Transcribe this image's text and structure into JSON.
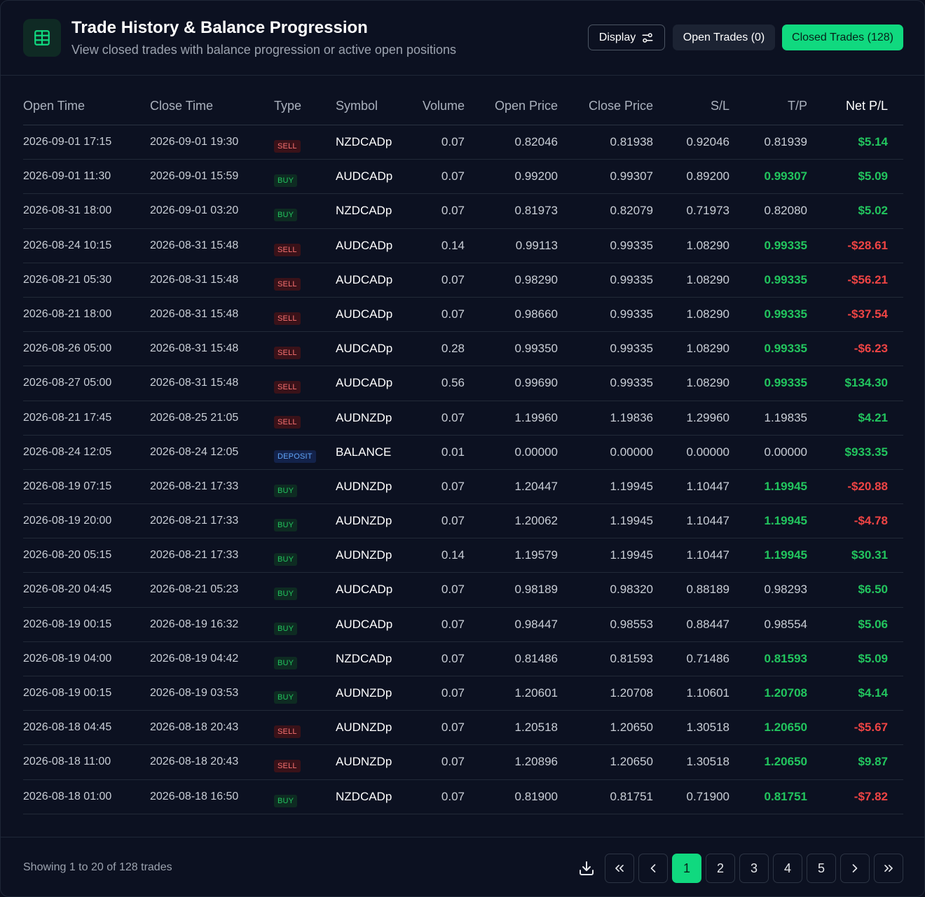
{
  "header": {
    "title": "Trade History & Balance Progression",
    "subtitle": "View closed trades with balance progression or active open positions",
    "display_label": "Display",
    "open_trades_label": "Open Trades (0)",
    "closed_trades_label": "Closed Trades (128)"
  },
  "columns": {
    "open_time": "Open Time",
    "close_time": "Close Time",
    "type": "Type",
    "symbol": "Symbol",
    "volume": "Volume",
    "open_price": "Open Price",
    "close_price": "Close Price",
    "sl": "S/L",
    "tp": "T/P",
    "net_pl": "Net P/L"
  },
  "rows": [
    {
      "open": "2026-09-01 17:15",
      "close": "2026-09-01 19:30",
      "type": "SELL",
      "symbol": "NZDCADp",
      "volume": "0.07",
      "open_price": "0.82046",
      "close_price": "0.81938",
      "sl": "0.92046",
      "tp": "0.81939",
      "tp_hit": false,
      "pl": "$5.14",
      "pl_sign": "pos"
    },
    {
      "open": "2026-09-01 11:30",
      "close": "2026-09-01 15:59",
      "type": "BUY",
      "symbol": "AUDCADp",
      "volume": "0.07",
      "open_price": "0.99200",
      "close_price": "0.99307",
      "sl": "0.89200",
      "tp": "0.99307",
      "tp_hit": true,
      "pl": "$5.09",
      "pl_sign": "pos"
    },
    {
      "open": "2026-08-31 18:00",
      "close": "2026-09-01 03:20",
      "type": "BUY",
      "symbol": "NZDCADp",
      "volume": "0.07",
      "open_price": "0.81973",
      "close_price": "0.82079",
      "sl": "0.71973",
      "tp": "0.82080",
      "tp_hit": false,
      "pl": "$5.02",
      "pl_sign": "pos"
    },
    {
      "open": "2026-08-24 10:15",
      "close": "2026-08-31 15:48",
      "type": "SELL",
      "symbol": "AUDCADp",
      "volume": "0.14",
      "open_price": "0.99113",
      "close_price": "0.99335",
      "sl": "1.08290",
      "tp": "0.99335",
      "tp_hit": true,
      "pl": "-$28.61",
      "pl_sign": "neg"
    },
    {
      "open": "2026-08-21 05:30",
      "close": "2026-08-31 15:48",
      "type": "SELL",
      "symbol": "AUDCADp",
      "volume": "0.07",
      "open_price": "0.98290",
      "close_price": "0.99335",
      "sl": "1.08290",
      "tp": "0.99335",
      "tp_hit": true,
      "pl": "-$56.21",
      "pl_sign": "neg"
    },
    {
      "open": "2026-08-21 18:00",
      "close": "2026-08-31 15:48",
      "type": "SELL",
      "symbol": "AUDCADp",
      "volume": "0.07",
      "open_price": "0.98660",
      "close_price": "0.99335",
      "sl": "1.08290",
      "tp": "0.99335",
      "tp_hit": true,
      "pl": "-$37.54",
      "pl_sign": "neg"
    },
    {
      "open": "2026-08-26 05:00",
      "close": "2026-08-31 15:48",
      "type": "SELL",
      "symbol": "AUDCADp",
      "volume": "0.28",
      "open_price": "0.99350",
      "close_price": "0.99335",
      "sl": "1.08290",
      "tp": "0.99335",
      "tp_hit": true,
      "pl": "-$6.23",
      "pl_sign": "neg"
    },
    {
      "open": "2026-08-27 05:00",
      "close": "2026-08-31 15:48",
      "type": "SELL",
      "symbol": "AUDCADp",
      "volume": "0.56",
      "open_price": "0.99690",
      "close_price": "0.99335",
      "sl": "1.08290",
      "tp": "0.99335",
      "tp_hit": true,
      "pl": "$134.30",
      "pl_sign": "pos"
    },
    {
      "open": "2026-08-21 17:45",
      "close": "2026-08-25 21:05",
      "type": "SELL",
      "symbol": "AUDNZDp",
      "volume": "0.07",
      "open_price": "1.19960",
      "close_price": "1.19836",
      "sl": "1.29960",
      "tp": "1.19835",
      "tp_hit": false,
      "pl": "$4.21",
      "pl_sign": "pos"
    },
    {
      "open": "2026-08-24 12:05",
      "close": "2026-08-24 12:05",
      "type": "DEPOSIT",
      "symbol": "BALANCE",
      "volume": "0.01",
      "open_price": "0.00000",
      "close_price": "0.00000",
      "sl": "0.00000",
      "tp": "0.00000",
      "tp_hit": false,
      "pl": "$933.35",
      "pl_sign": "pos"
    },
    {
      "open": "2026-08-19 07:15",
      "close": "2026-08-21 17:33",
      "type": "BUY",
      "symbol": "AUDNZDp",
      "volume": "0.07",
      "open_price": "1.20447",
      "close_price": "1.19945",
      "sl": "1.10447",
      "tp": "1.19945",
      "tp_hit": true,
      "pl": "-$20.88",
      "pl_sign": "neg"
    },
    {
      "open": "2026-08-19 20:00",
      "close": "2026-08-21 17:33",
      "type": "BUY",
      "symbol": "AUDNZDp",
      "volume": "0.07",
      "open_price": "1.20062",
      "close_price": "1.19945",
      "sl": "1.10447",
      "tp": "1.19945",
      "tp_hit": true,
      "pl": "-$4.78",
      "pl_sign": "neg"
    },
    {
      "open": "2026-08-20 05:15",
      "close": "2026-08-21 17:33",
      "type": "BUY",
      "symbol": "AUDNZDp",
      "volume": "0.14",
      "open_price": "1.19579",
      "close_price": "1.19945",
      "sl": "1.10447",
      "tp": "1.19945",
      "tp_hit": true,
      "pl": "$30.31",
      "pl_sign": "pos"
    },
    {
      "open": "2026-08-20 04:45",
      "close": "2026-08-21 05:23",
      "type": "BUY",
      "symbol": "AUDCADp",
      "volume": "0.07",
      "open_price": "0.98189",
      "close_price": "0.98320",
      "sl": "0.88189",
      "tp": "0.98293",
      "tp_hit": false,
      "pl": "$6.50",
      "pl_sign": "pos"
    },
    {
      "open": "2026-08-19 00:15",
      "close": "2026-08-19 16:32",
      "type": "BUY",
      "symbol": "AUDCADp",
      "volume": "0.07",
      "open_price": "0.98447",
      "close_price": "0.98553",
      "sl": "0.88447",
      "tp": "0.98554",
      "tp_hit": false,
      "pl": "$5.06",
      "pl_sign": "pos"
    },
    {
      "open": "2026-08-19 04:00",
      "close": "2026-08-19 04:42",
      "type": "BUY",
      "symbol": "NZDCADp",
      "volume": "0.07",
      "open_price": "0.81486",
      "close_price": "0.81593",
      "sl": "0.71486",
      "tp": "0.81593",
      "tp_hit": true,
      "pl": "$5.09",
      "pl_sign": "pos"
    },
    {
      "open": "2026-08-19 00:15",
      "close": "2026-08-19 03:53",
      "type": "BUY",
      "symbol": "AUDNZDp",
      "volume": "0.07",
      "open_price": "1.20601",
      "close_price": "1.20708",
      "sl": "1.10601",
      "tp": "1.20708",
      "tp_hit": true,
      "pl": "$4.14",
      "pl_sign": "pos"
    },
    {
      "open": "2026-08-18 04:45",
      "close": "2026-08-18 20:43",
      "type": "SELL",
      "symbol": "AUDNZDp",
      "volume": "0.07",
      "open_price": "1.20518",
      "close_price": "1.20650",
      "sl": "1.30518",
      "tp": "1.20650",
      "tp_hit": true,
      "pl": "-$5.67",
      "pl_sign": "neg"
    },
    {
      "open": "2026-08-18 11:00",
      "close": "2026-08-18 20:43",
      "type": "SELL",
      "symbol": "AUDNZDp",
      "volume": "0.07",
      "open_price": "1.20896",
      "close_price": "1.20650",
      "sl": "1.30518",
      "tp": "1.20650",
      "tp_hit": true,
      "pl": "$9.87",
      "pl_sign": "pos"
    },
    {
      "open": "2026-08-18 01:00",
      "close": "2026-08-18 16:50",
      "type": "BUY",
      "symbol": "NZDCADp",
      "volume": "0.07",
      "open_price": "0.81900",
      "close_price": "0.81751",
      "sl": "0.71900",
      "tp": "0.81751",
      "tp_hit": true,
      "pl": "-$7.82",
      "pl_sign": "neg"
    }
  ],
  "footer": {
    "showing": "Showing 1 to 20 of 128 trades",
    "pages": [
      "1",
      "2",
      "3",
      "4",
      "5"
    ],
    "active_page": "1"
  },
  "colors": {
    "accent": "#10d97f",
    "positive": "#22c55e",
    "negative": "#ef4444",
    "background": "#0c1121"
  },
  "icons": {
    "header": "table-icon",
    "display": "sliders-icon",
    "download": "download-icon",
    "first": "double-chevron-left-icon",
    "prev": "chevron-left-icon",
    "next": "chevron-right-icon",
    "last": "double-chevron-right-icon"
  }
}
